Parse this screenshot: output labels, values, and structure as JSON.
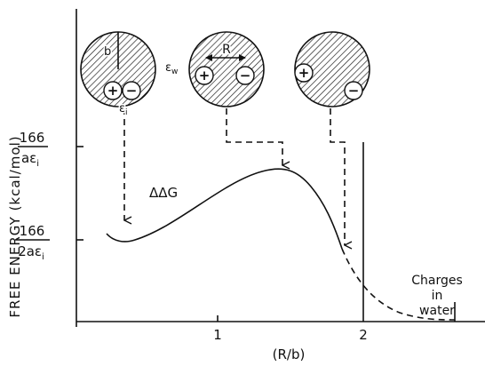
{
  "axes": {
    "y_label": "FREE ENERGY (kcal/mol)",
    "x_label": "(R/b)",
    "x_ticks": [
      "1",
      "2"
    ],
    "y_ticks": [
      {
        "numerator": "166",
        "denominator": "aε",
        "subscript": "i"
      },
      {
        "numerator": "166",
        "denominator": "2aε",
        "subscript": "i"
      }
    ]
  },
  "curve_label": "ΔΔG",
  "annotation": [
    "Charges",
    "in",
    "water"
  ],
  "diagram": {
    "radius_label": "b",
    "inner_dielectric": {
      "symbol": "ε",
      "subscript": "i"
    },
    "outer_dielectric": {
      "symbol": "ε",
      "subscript": "w"
    },
    "distance_label": "R",
    "circles": [
      {
        "charges": [
          "+",
          "−"
        ]
      },
      {
        "charges": [
          "+",
          "−"
        ]
      },
      {
        "charges": [
          "+",
          "−"
        ]
      }
    ]
  }
}
